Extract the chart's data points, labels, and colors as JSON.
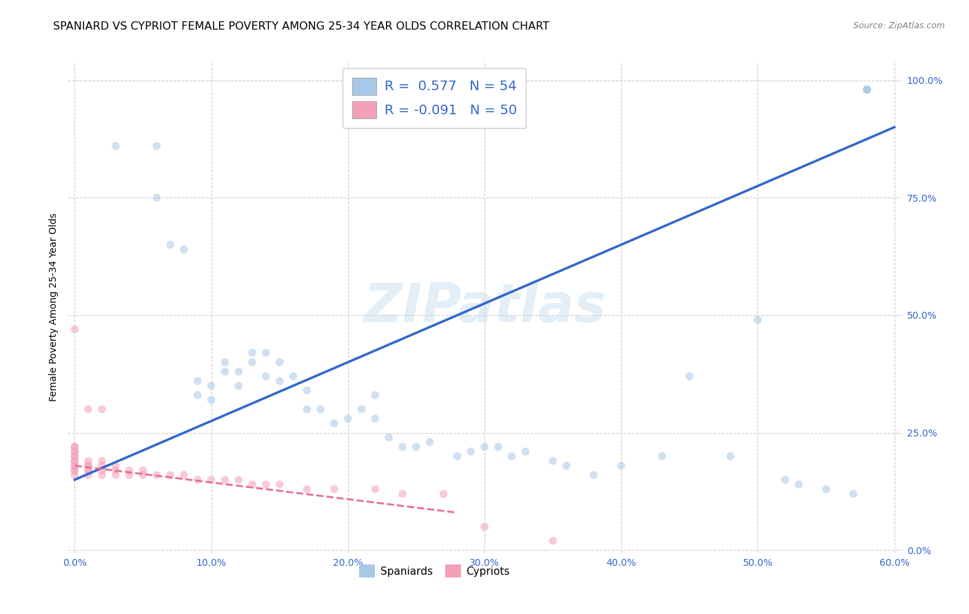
{
  "title": "SPANIARD VS CYPRIOT FEMALE POVERTY AMONG 25-34 YEAR OLDS CORRELATION CHART",
  "source": "Source: ZipAtlas.com",
  "ylabel": "Female Poverty Among 25-34 Year Olds",
  "watermark": "ZIPatlas",
  "spaniard_color": "#a8c8e8",
  "cypriot_color": "#f4a0b8",
  "trendline_spaniard_color": "#3366cc",
  "trendline_cypriot_color": "#e87090",
  "legend_r_spaniard": "0.577",
  "legend_n_spaniard": "54",
  "legend_r_cypriot": "-0.091",
  "legend_n_cypriot": "50",
  "spaniard_x": [
    0.03,
    0.06,
    0.06,
    0.07,
    0.08,
    0.09,
    0.09,
    0.1,
    0.1,
    0.11,
    0.11,
    0.12,
    0.12,
    0.13,
    0.13,
    0.14,
    0.14,
    0.15,
    0.15,
    0.16,
    0.17,
    0.17,
    0.18,
    0.19,
    0.2,
    0.21,
    0.22,
    0.22,
    0.23,
    0.24,
    0.25,
    0.26,
    0.28,
    0.29,
    0.3,
    0.31,
    0.32,
    0.33,
    0.35,
    0.36,
    0.38,
    0.4,
    0.43,
    0.45,
    0.48,
    0.5,
    0.52,
    0.53,
    0.55,
    0.57,
    0.58,
    0.58,
    0.58,
    0.58
  ],
  "spaniard_y": [
    0.86,
    0.86,
    0.75,
    0.65,
    0.64,
    0.33,
    0.36,
    0.32,
    0.35,
    0.38,
    0.4,
    0.38,
    0.35,
    0.42,
    0.4,
    0.42,
    0.37,
    0.4,
    0.36,
    0.37,
    0.34,
    0.3,
    0.3,
    0.27,
    0.28,
    0.3,
    0.33,
    0.28,
    0.24,
    0.22,
    0.22,
    0.23,
    0.2,
    0.21,
    0.22,
    0.22,
    0.2,
    0.21,
    0.19,
    0.18,
    0.16,
    0.18,
    0.2,
    0.37,
    0.2,
    0.49,
    0.15,
    0.14,
    0.13,
    0.12,
    0.98,
    0.98,
    0.98,
    0.98
  ],
  "cypriot_x": [
    0.0,
    0.0,
    0.0,
    0.0,
    0.0,
    0.0,
    0.0,
    0.0,
    0.0,
    0.0,
    0.0,
    0.0,
    0.0,
    0.0,
    0.01,
    0.01,
    0.01,
    0.01,
    0.01,
    0.01,
    0.01,
    0.02,
    0.02,
    0.02,
    0.02,
    0.02,
    0.03,
    0.03,
    0.03,
    0.04,
    0.04,
    0.05,
    0.05,
    0.06,
    0.07,
    0.08,
    0.09,
    0.1,
    0.11,
    0.12,
    0.13,
    0.14,
    0.15,
    0.17,
    0.19,
    0.22,
    0.24,
    0.27,
    0.3,
    0.35
  ],
  "cypriot_y": [
    0.16,
    0.17,
    0.17,
    0.18,
    0.18,
    0.19,
    0.19,
    0.2,
    0.2,
    0.21,
    0.21,
    0.22,
    0.22,
    0.47,
    0.16,
    0.17,
    0.17,
    0.18,
    0.18,
    0.19,
    0.3,
    0.16,
    0.17,
    0.18,
    0.19,
    0.3,
    0.16,
    0.17,
    0.18,
    0.16,
    0.17,
    0.16,
    0.17,
    0.16,
    0.16,
    0.16,
    0.15,
    0.15,
    0.15,
    0.15,
    0.14,
    0.14,
    0.14,
    0.13,
    0.13,
    0.13,
    0.12,
    0.12,
    0.05,
    0.02
  ],
  "xlim": [
    -0.005,
    0.605
  ],
  "ylim": [
    -0.005,
    1.04
  ],
  "xticks": [
    0.0,
    0.1,
    0.2,
    0.3,
    0.4,
    0.5,
    0.6
  ],
  "xticklabels": [
    "0.0%",
    "10.0%",
    "20.0%",
    "30.0%",
    "40.0%",
    "50.0%",
    "60.0%"
  ],
  "yticks": [
    0.0,
    0.25,
    0.5,
    0.75,
    1.0
  ],
  "yticklabels": [
    "0.0%",
    "25.0%",
    "50.0%",
    "75.0%",
    "100.0%"
  ],
  "grid_color": "#cccccc",
  "bg_color": "#ffffff",
  "title_fontsize": 11.5,
  "axis_label_fontsize": 10,
  "tick_fontsize": 10,
  "marker_size": 70,
  "marker_alpha": 0.55
}
